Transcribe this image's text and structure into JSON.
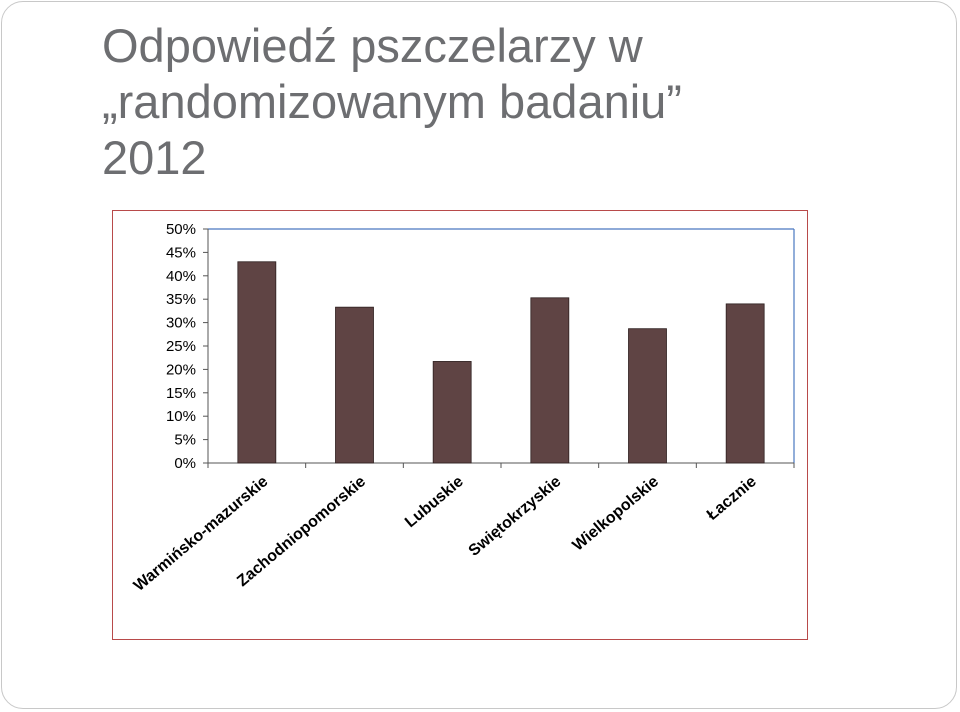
{
  "slide": {
    "title": "Odpowiedź pszczelarzy w\n„randomizowanym badaniu”\n2012"
  },
  "chart_data": {
    "type": "bar",
    "categories": [
      "Warmińsko-mazurskie",
      "Zachodniopomorskie",
      "Lubuskie",
      "Swiętokrzyskie",
      "Wielkopolskie",
      "Łacznie"
    ],
    "values": [
      43,
      33.3,
      21.7,
      35.3,
      28.7,
      34
    ],
    "ylim": [
      0,
      50
    ],
    "yticks": [
      "0%",
      "5%",
      "10%",
      "15%",
      "20%",
      "25%",
      "30%",
      "35%",
      "40%",
      "45%",
      "50%"
    ],
    "grid": false,
    "legend": "none"
  },
  "colors": {
    "bar": "#5f4444",
    "axis_frame": "#4a78c0",
    "chart_border": "#b84a4a",
    "title": "#6d6e71"
  }
}
